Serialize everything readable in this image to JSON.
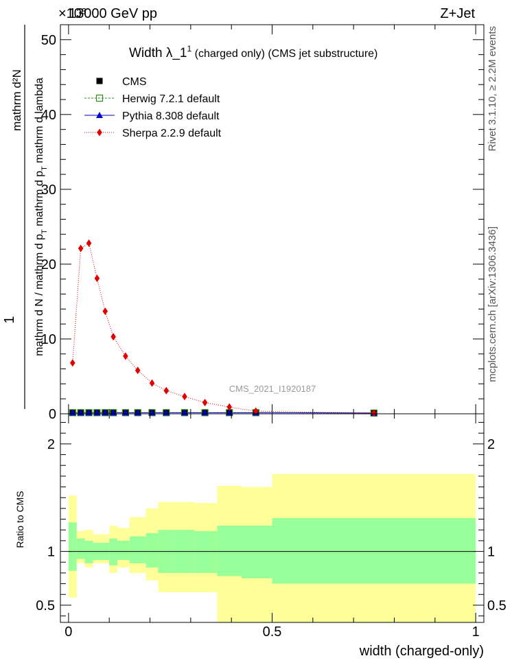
{
  "header": {
    "energy_label": "13000 GeV pp",
    "process_label": "Z+Jet",
    "exponent_label": "×10³"
  },
  "side_labels": {
    "rivet": "Rivet 3.1.10, ≥ 2.2M events",
    "mcplots": "mcplots.cern.ch [arXiv:1306.3436]"
  },
  "watermark": "CMS_2021_I1920187",
  "colors": {
    "cms": "#000000",
    "herwig": "#2e8b1a",
    "pythia": "#0000cc",
    "sherpa": "#e00000",
    "band_inner": "#99ff99",
    "band_outer": "#ffff99"
  },
  "chart_data": [
    {
      "type": "line",
      "title_main": "Width λ_1",
      "title_sup": "1",
      "title_rest": " (charged only) (CMS jet substructure)",
      "ylabel_num": "1",
      "ylabel_den1": "mathrm d N / mathrm d p",
      "ylabel_den_sub": "T",
      "ylabel_den2": "mathrm d p",
      "ylabel_den2_sub": "T",
      "ylabel_den3": "mathrm d lambda",
      "ylabel_num2": "mathrm d²N",
      "xlim": [
        -0.02,
        1.02
      ],
      "ylim": [
        0,
        52
      ],
      "yticks": [
        0,
        10,
        20,
        30,
        40,
        50
      ],
      "ytick_labels": [
        "0",
        "10",
        "20",
        "30",
        "40",
        "50"
      ],
      "legend": [
        {
          "key": "cms",
          "label": "CMS"
        },
        {
          "key": "herwig",
          "label": "Herwig 7.2.1 default"
        },
        {
          "key": "pythia",
          "label": "Pythia 8.308 default"
        },
        {
          "key": "sherpa",
          "label": "Sherpa 2.2.9 default"
        }
      ],
      "legend_position": "top-left",
      "x": [
        0.01,
        0.03,
        0.05,
        0.07,
        0.09,
        0.11,
        0.14,
        0.17,
        0.205,
        0.24,
        0.285,
        0.335,
        0.395,
        0.46,
        0.75
      ],
      "series": [
        {
          "name": "CMS",
          "values": [
            0.15,
            0.15,
            0.15,
            0.15,
            0.15,
            0.15,
            0.15,
            0.15,
            0.15,
            0.15,
            0.15,
            0.15,
            0.15,
            0.15,
            0.1
          ]
        },
        {
          "name": "Herwig 7.2.1 default",
          "values": [
            0.15,
            0.15,
            0.15,
            0.15,
            0.15,
            0.15,
            0.15,
            0.15,
            0.15,
            0.15,
            0.15,
            0.15,
            0.15,
            0.15,
            0.1
          ]
        },
        {
          "name": "Pythia 8.308 default",
          "values": [
            0.15,
            0.15,
            0.15,
            0.15,
            0.15,
            0.15,
            0.15,
            0.15,
            0.15,
            0.15,
            0.15,
            0.15,
            0.15,
            0.15,
            0.1
          ]
        },
        {
          "name": "Sherpa 2.2.9 default",
          "values": [
            6.8,
            22.1,
            22.8,
            18.1,
            13.7,
            10.3,
            7.7,
            5.8,
            4.1,
            3.1,
            2.3,
            1.5,
            0.9,
            0.35,
            0.1
          ]
        }
      ]
    },
    {
      "type": "area",
      "ylabel": "Ratio to CMS",
      "xlabel": "width (charged-only)",
      "xlim": [
        -0.02,
        1.02
      ],
      "ylim": [
        0.34,
        2.28
      ],
      "xticks": [
        0,
        0.5,
        1
      ],
      "xtick_labels": [
        "0",
        "0.5",
        "1"
      ],
      "yticks": [
        0.5,
        1,
        2
      ],
      "ytick_labels": [
        "0.5",
        "1",
        "2"
      ],
      "reference": 1,
      "bin_edges": [
        0.0,
        0.02,
        0.04,
        0.06,
        0.1,
        0.12,
        0.15,
        0.19,
        0.22,
        0.26,
        0.31,
        0.365,
        0.425,
        0.5,
        1.0
      ],
      "inner_band": {
        "low": [
          0.82,
          0.93,
          0.89,
          0.92,
          0.87,
          0.92,
          0.89,
          0.85,
          0.8,
          0.8,
          0.8,
          0.77,
          0.75,
          0.7
        ],
        "high": [
          1.27,
          1.12,
          1.1,
          1.08,
          1.12,
          1.1,
          1.14,
          1.17,
          1.2,
          1.2,
          1.19,
          1.24,
          1.24,
          1.31
        ]
      },
      "outer_band": {
        "low": [
          0.57,
          0.89,
          0.85,
          0.89,
          0.8,
          0.85,
          0.8,
          0.73,
          0.62,
          0.62,
          0.62,
          0.34,
          0.34,
          0.34
        ],
        "high": [
          1.52,
          1.19,
          1.2,
          1.16,
          1.24,
          1.22,
          1.32,
          1.4,
          1.46,
          1.46,
          1.45,
          1.61,
          1.6,
          1.72
        ]
      }
    }
  ]
}
